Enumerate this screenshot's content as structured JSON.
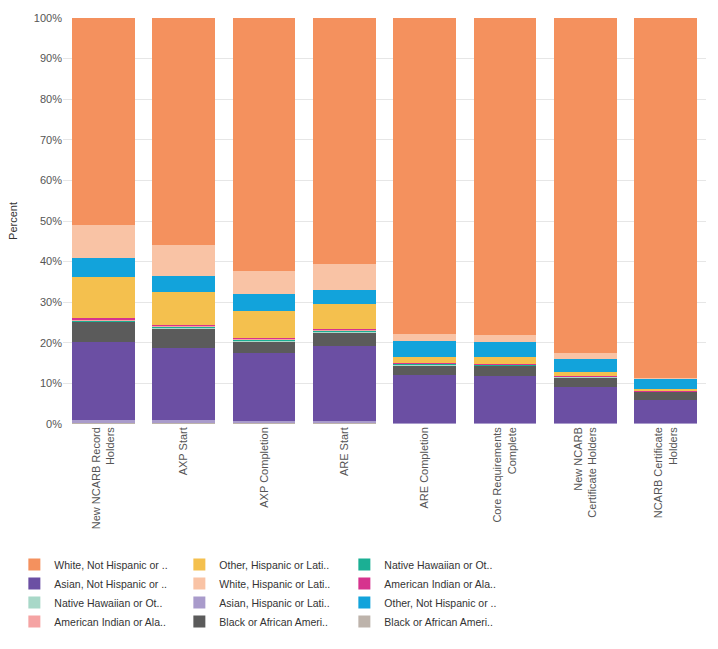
{
  "chart_data": {
    "type": "bar",
    "stacked": true,
    "grid": true,
    "legend": "bottom",
    "ylabel": "Percent",
    "ylim": [
      0,
      100
    ],
    "yticks": [
      {
        "value": 0,
        "label": "0%"
      },
      {
        "value": 10,
        "label": "10%"
      },
      {
        "value": 20,
        "label": "20%"
      },
      {
        "value": 30,
        "label": "30%"
      },
      {
        "value": 40,
        "label": "40%"
      },
      {
        "value": 50,
        "label": "50%"
      },
      {
        "value": 60,
        "label": "60%"
      },
      {
        "value": 70,
        "label": "70%"
      },
      {
        "value": 80,
        "label": "80%"
      },
      {
        "value": 90,
        "label": "90%"
      },
      {
        "value": 100,
        "label": "100%"
      }
    ],
    "categories": [
      "New NCARB Record Holders",
      "AXP Start",
      "AXP Completion",
      "ARE Start",
      "ARE Completion",
      "Core Requirements Complete",
      "New NCARB Certificate Holders",
      "NCARB Certificate Holders"
    ],
    "series": [
      {
        "name": "White, Not Hispanic or ..",
        "color": "#f4915e",
        "values": [
          50.9,
          55.9,
          62.4,
          60.7,
          77.9,
          78.0,
          82.5,
          88.6
        ]
      },
      {
        "name": "White, Hispanic or Lati..",
        "color": "#f9c3a5",
        "values": [
          8.3,
          7.6,
          5.5,
          6.2,
          1.7,
          1.7,
          1.4,
          0.2
        ]
      },
      {
        "name": "Other, Not Hispanic or ..",
        "color": "#12a3db",
        "values": [
          4.5,
          4.0,
          4.3,
          3.6,
          3.8,
          3.8,
          3.3,
          2.6
        ]
      },
      {
        "name": "Other, Hispanic or Lati..",
        "color": "#f4c04e",
        "values": [
          10.2,
          8.0,
          6.5,
          6.0,
          1.5,
          1.6,
          0.9,
          0.4
        ]
      },
      {
        "name": "American Indian or Ala..",
        "color": "#d6338e",
        "values": [
          0.3,
          0.3,
          0.3,
          0.3,
          0.2,
          0.2,
          0.1,
          0.1
        ]
      },
      {
        "name": "American Indian or Ala..",
        "color": "#f5a3a3",
        "values": [
          0.2,
          0.2,
          0.2,
          0.2,
          0.1,
          0.1,
          0.1,
          0.1
        ]
      },
      {
        "name": "Native Hawaiian or Ot..",
        "color": "#1baf94",
        "values": [
          0.3,
          0.3,
          0.3,
          0.3,
          0.2,
          0.2,
          0.1,
          0.1
        ]
      },
      {
        "name": "Native Hawaiian or Ot..",
        "color": "#a8d8c8",
        "values": [
          0.1,
          0.1,
          0.1,
          0.1,
          0.1,
          0.1,
          0.1,
          0.0
        ]
      },
      {
        "name": "Black or African Ameri..",
        "color": "#5b5b5b",
        "values": [
          5.0,
          4.8,
          3.0,
          3.3,
          2.4,
          2.4,
          2.3,
          2.1
        ]
      },
      {
        "name": "Asian, Not Hispanic or ..",
        "color": "#6b4fa3",
        "values": [
          19.3,
          17.9,
          16.7,
          18.6,
          11.9,
          11.7,
          9.0,
          5.6
        ]
      },
      {
        "name": "Asian, Hispanic or Lati..",
        "color": "#a99bcb",
        "values": [
          0.7,
          0.7,
          0.5,
          0.5,
          0.1,
          0.1,
          0.1,
          0.1
        ]
      },
      {
        "name": "Black or African Ameri..",
        "color": "#bdb3ab",
        "values": [
          0.2,
          0.2,
          0.2,
          0.2,
          0.1,
          0.1,
          0.1,
          0.1
        ]
      }
    ]
  }
}
